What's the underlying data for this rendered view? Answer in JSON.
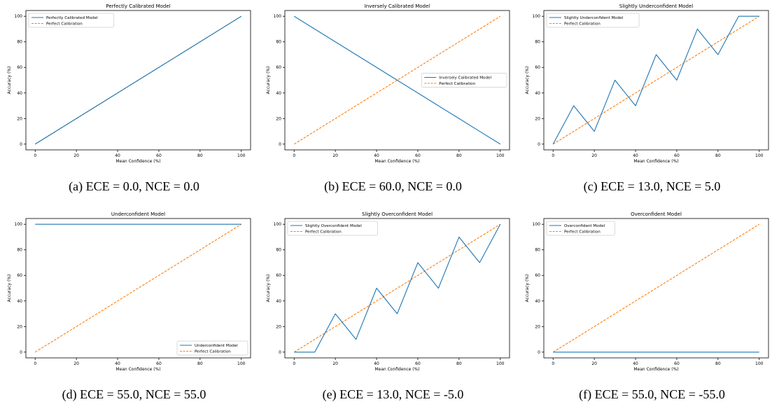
{
  "colors": {
    "model": "#1f77b4",
    "perfect": "#ff7f0e",
    "axis": "#000000",
    "legend_border": "#cccccc"
  },
  "chart_data": [
    {
      "type": "line",
      "title": "Perfectly Calibrated Model",
      "xlabel": "Mean Confidence (%)",
      "ylabel": "Accuracy (%)",
      "xlim": [
        0,
        100
      ],
      "ylim": [
        0,
        100
      ],
      "xticks": [
        0,
        20,
        40,
        60,
        80,
        100
      ],
      "yticks": [
        0,
        20,
        40,
        60,
        80,
        100
      ],
      "legend_loc": "upper left",
      "caption": "(a) ECE = 0.0, NCE = 0.0",
      "series": [
        {
          "name": "Perfectly Calibrated Model",
          "style": "solid",
          "x": [
            0,
            10,
            20,
            30,
            40,
            50,
            60,
            70,
            80,
            90,
            100
          ],
          "y": [
            0,
            10,
            20,
            30,
            40,
            50,
            60,
            70,
            80,
            90,
            100
          ]
        },
        {
          "name": "Perfect Calibration",
          "style": "dashed",
          "x": [
            0,
            100
          ],
          "y": [
            0,
            100
          ]
        }
      ]
    },
    {
      "type": "line",
      "title": "Inversely Calibrated Model",
      "xlabel": "Mean Confidence (%)",
      "ylabel": "Accuracy (%)",
      "xlim": [
        0,
        100
      ],
      "ylim": [
        0,
        100
      ],
      "xticks": [
        0,
        20,
        40,
        60,
        80,
        100
      ],
      "yticks": [
        0,
        20,
        40,
        60,
        80,
        100
      ],
      "legend_loc": "center right",
      "caption": "(b) ECE = 60.0, NCE = 0.0",
      "series": [
        {
          "name": "Inversely Calibrated Model",
          "style": "solid",
          "x": [
            0,
            10,
            20,
            30,
            40,
            50,
            60,
            70,
            80,
            90,
            100
          ],
          "y": [
            100,
            90,
            80,
            70,
            60,
            50,
            40,
            30,
            20,
            10,
            0
          ]
        },
        {
          "name": "Perfect Calibration",
          "style": "dashed",
          "x": [
            0,
            100
          ],
          "y": [
            0,
            100
          ]
        }
      ]
    },
    {
      "type": "line",
      "title": "Slightly Underconfident Model",
      "xlabel": "Mean Confidence (%)",
      "ylabel": "Accuracy (%)",
      "xlim": [
        0,
        100
      ],
      "ylim": [
        0,
        100
      ],
      "xticks": [
        0,
        20,
        40,
        60,
        80,
        100
      ],
      "yticks": [
        0,
        20,
        40,
        60,
        80,
        100
      ],
      "legend_loc": "upper left",
      "caption": "(c) ECE = 13.0, NCE = 5.0",
      "series": [
        {
          "name": "Slightly Underconfident Model",
          "style": "solid",
          "x": [
            0,
            10,
            20,
            30,
            40,
            50,
            60,
            70,
            80,
            90,
            100
          ],
          "y": [
            0,
            30,
            10,
            50,
            30,
            70,
            50,
            90,
            70,
            100,
            100
          ]
        },
        {
          "name": "Perfect Calibration",
          "style": "dashed",
          "x": [
            0,
            100
          ],
          "y": [
            0,
            100
          ]
        }
      ]
    },
    {
      "type": "line",
      "title": "Underconfident Model",
      "xlabel": "Mean Confidence (%)",
      "ylabel": "Accuracy (%)",
      "xlim": [
        0,
        100
      ],
      "ylim": [
        0,
        100
      ],
      "xticks": [
        0,
        20,
        40,
        60,
        80,
        100
      ],
      "yticks": [
        0,
        20,
        40,
        60,
        80,
        100
      ],
      "legend_loc": "lower right",
      "caption": "(d) ECE = 55.0, NCE = 55.0",
      "series": [
        {
          "name": "Underconfident Model",
          "style": "solid",
          "x": [
            0,
            10,
            20,
            30,
            40,
            50,
            60,
            70,
            80,
            90,
            100
          ],
          "y": [
            100,
            100,
            100,
            100,
            100,
            100,
            100,
            100,
            100,
            100,
            100
          ]
        },
        {
          "name": "Perfect Calibration",
          "style": "dashed",
          "x": [
            0,
            100
          ],
          "y": [
            0,
            100
          ]
        }
      ]
    },
    {
      "type": "line",
      "title": "Slightly Overconfident Model",
      "xlabel": "Mean Confidence (%)",
      "ylabel": "Accuracy (%)",
      "xlim": [
        0,
        100
      ],
      "ylim": [
        0,
        100
      ],
      "xticks": [
        0,
        20,
        40,
        60,
        80,
        100
      ],
      "yticks": [
        0,
        20,
        40,
        60,
        80,
        100
      ],
      "legend_loc": "upper left",
      "caption": "(e) ECE = 13.0, NCE = -5.0",
      "series": [
        {
          "name": "Slightly Overconfident Model",
          "style": "solid",
          "x": [
            0,
            10,
            20,
            30,
            40,
            50,
            60,
            70,
            80,
            90,
            100
          ],
          "y": [
            0,
            0,
            30,
            10,
            50,
            30,
            70,
            50,
            90,
            70,
            100
          ]
        },
        {
          "name": "Perfect Calibration",
          "style": "dashed",
          "x": [
            0,
            100
          ],
          "y": [
            0,
            100
          ]
        }
      ]
    },
    {
      "type": "line",
      "title": "Overconfident Model",
      "xlabel": "Mean Confidence (%)",
      "ylabel": "Accuracy (%)",
      "xlim": [
        0,
        100
      ],
      "ylim": [
        0,
        100
      ],
      "xticks": [
        0,
        20,
        40,
        60,
        80,
        100
      ],
      "yticks": [
        0,
        20,
        40,
        60,
        80,
        100
      ],
      "legend_loc": "upper left",
      "caption": "(f) ECE = 55.0, NCE = -55.0",
      "series": [
        {
          "name": "Overconfident Model",
          "style": "solid",
          "x": [
            0,
            10,
            20,
            30,
            40,
            50,
            60,
            70,
            80,
            90,
            100
          ],
          "y": [
            0,
            0,
            0,
            0,
            0,
            0,
            0,
            0,
            0,
            0,
            0
          ]
        },
        {
          "name": "Perfect Calibration",
          "style": "dashed",
          "x": [
            0,
            100
          ],
          "y": [
            0,
            100
          ]
        }
      ]
    }
  ]
}
